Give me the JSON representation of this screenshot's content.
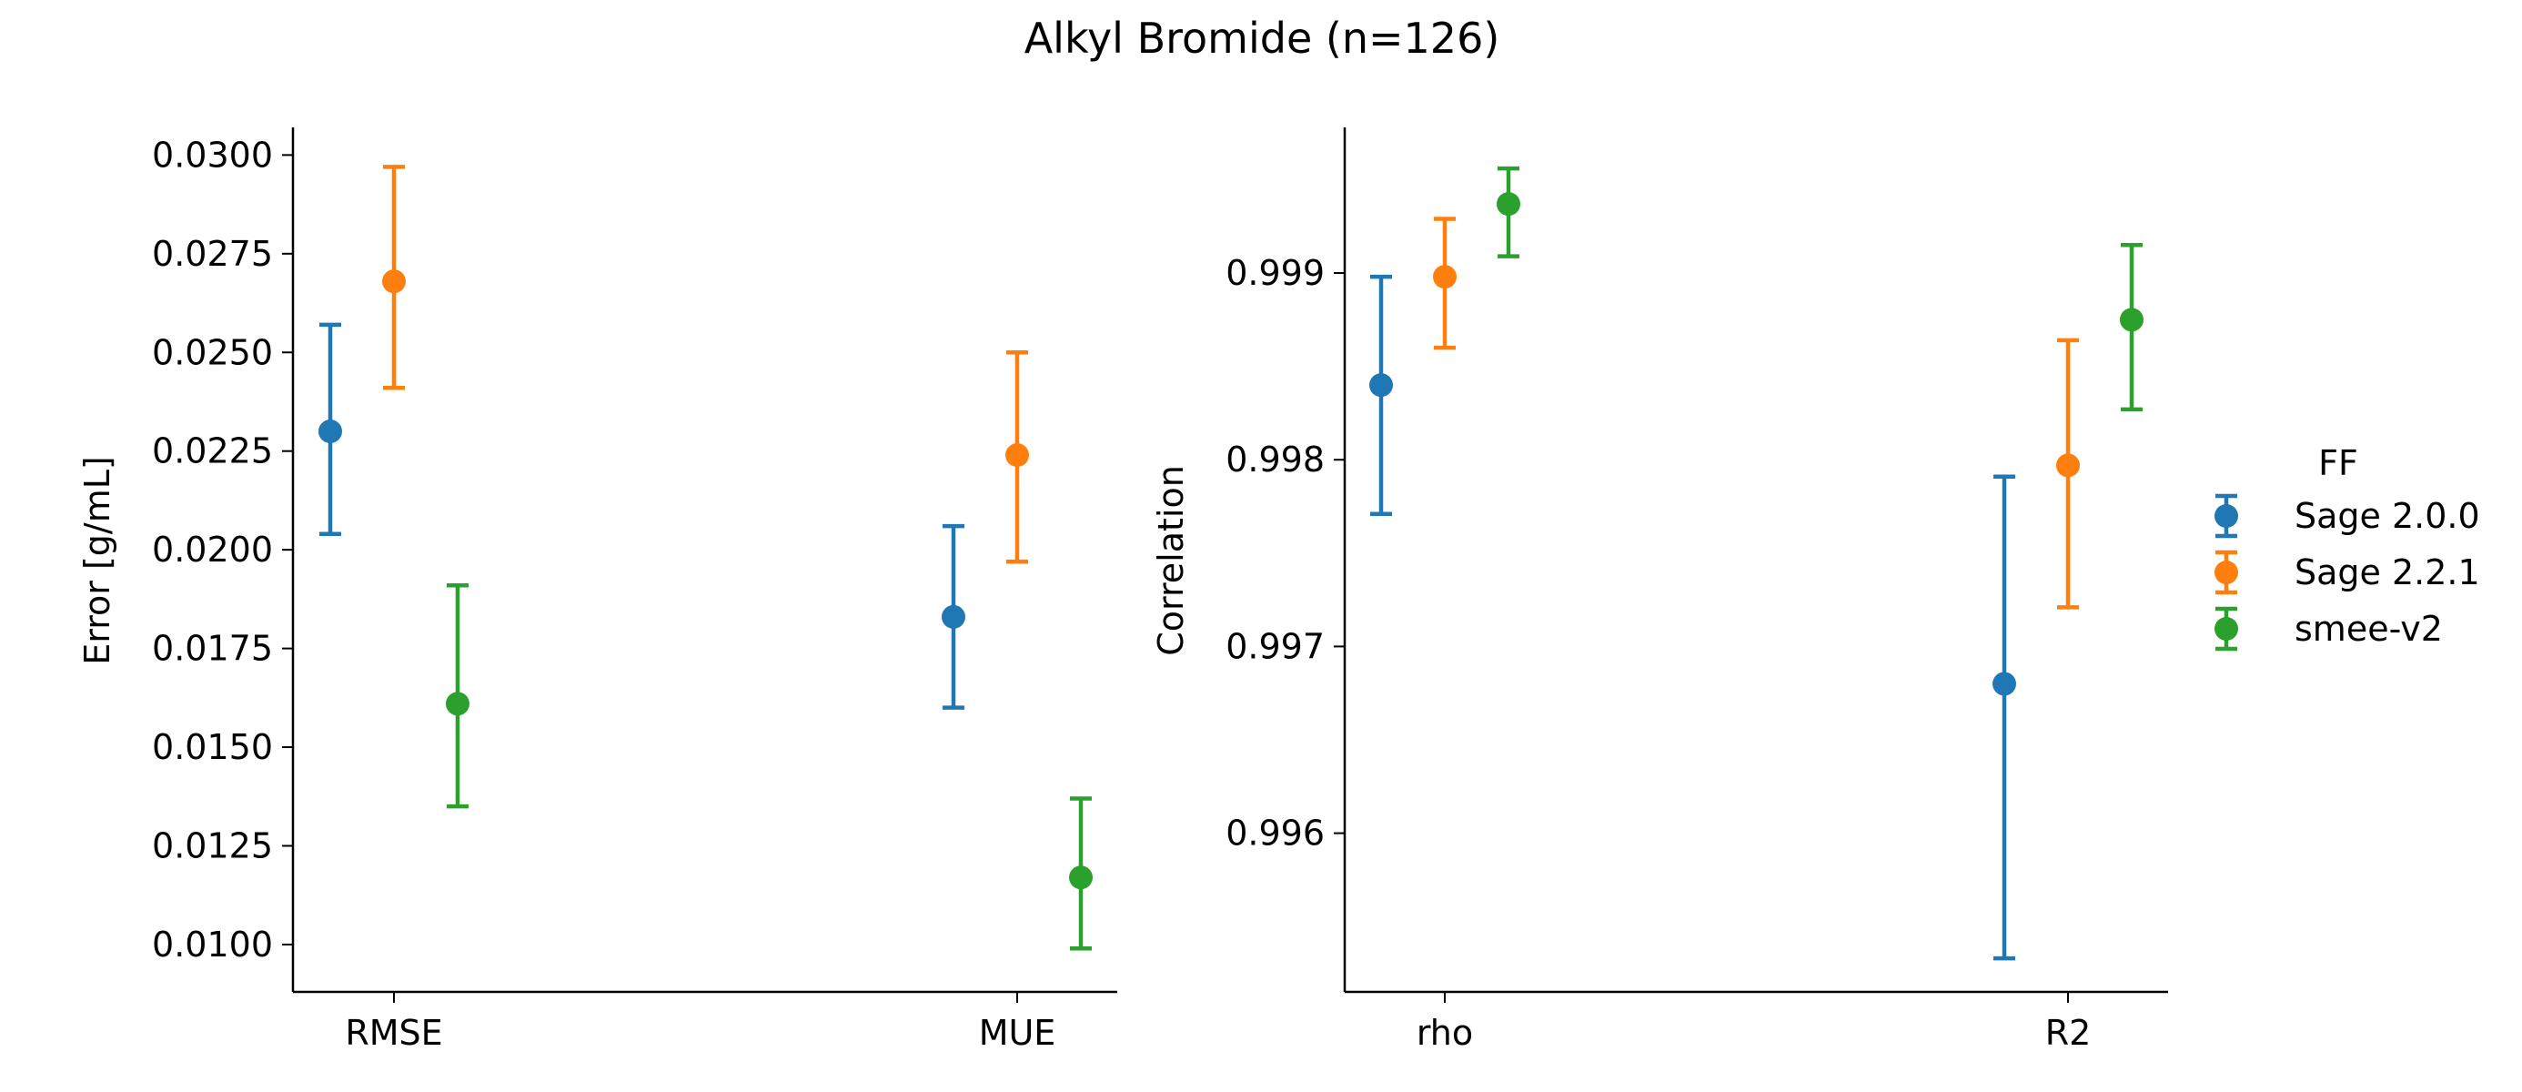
{
  "figure": {
    "title": "Alkyl Bromide (n=126)"
  },
  "colors": {
    "Sage 2.0.0": "#1f77b4",
    "Sage 2.2.1": "#ff7f0e",
    "smee-v2": "#2ca02c"
  },
  "legend": {
    "title": "FF",
    "placement": "right, outside",
    "entries": [
      "Sage 2.0.0",
      "Sage 2.2.1",
      "smee-v2"
    ]
  },
  "chart_data": [
    {
      "type": "scatter",
      "style": "point with error bars",
      "xlabel": "",
      "ylabel": "Error [g/mL]",
      "categories": [
        "RMSE",
        "MUE"
      ],
      "ylim": [
        0.0088,
        0.0307
      ],
      "yticks": [
        "0.0100",
        "0.0125",
        "0.0150",
        "0.0175",
        "0.0200",
        "0.0225",
        "0.0250",
        "0.0275",
        "0.0300"
      ],
      "series": [
        {
          "name": "Sage 2.0.0",
          "values": [
            0.023,
            0.0183
          ],
          "lower": [
            0.0204,
            0.016
          ],
          "upper": [
            0.0257,
            0.0206
          ]
        },
        {
          "name": "Sage 2.2.1",
          "values": [
            0.0268,
            0.0224
          ],
          "lower": [
            0.0241,
            0.0197
          ],
          "upper": [
            0.0297,
            0.025
          ]
        },
        {
          "name": "smee-v2",
          "values": [
            0.0161,
            0.0117
          ],
          "lower": [
            0.0135,
            0.0099
          ],
          "upper": [
            0.0191,
            0.0137
          ]
        }
      ]
    },
    {
      "type": "scatter",
      "style": "point with error bars",
      "xlabel": "",
      "ylabel": "Correlation",
      "categories": [
        "rho",
        "R2"
      ],
      "ylim": [
        0.99515,
        0.99978
      ],
      "yticks": [
        "0.996",
        "0.997",
        "0.998",
        "0.999"
      ],
      "series": [
        {
          "name": "Sage 2.0.0",
          "values": [
            0.9984,
            0.9968
          ],
          "lower": [
            0.99771,
            0.99533
          ],
          "upper": [
            0.99898,
            0.99791
          ]
        },
        {
          "name": "Sage 2.2.1",
          "values": [
            0.99898,
            0.99797
          ],
          "lower": [
            0.9986,
            0.99721
          ],
          "upper": [
            0.99929,
            0.99864
          ]
        },
        {
          "name": "smee-v2",
          "values": [
            0.99937,
            0.99875
          ],
          "lower": [
            0.99909,
            0.99827
          ],
          "upper": [
            0.99956,
            0.99915
          ]
        }
      ]
    }
  ]
}
